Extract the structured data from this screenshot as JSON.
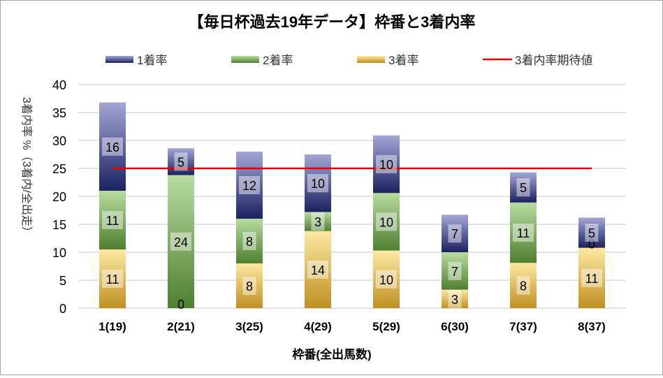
{
  "chart_data": {
    "type": "bar",
    "stacked": true,
    "title": "【毎日杯過去19年データ】枠番と3着内率",
    "xlabel": "枠番(全出馬数)",
    "ylabel": "3着内率 %（3着内/全出走）",
    "ylim": [
      0,
      40
    ],
    "yticks": [
      0,
      5,
      10,
      15,
      20,
      25,
      30,
      35,
      40
    ],
    "grid": true,
    "legend_position": "top",
    "categories": [
      "1(19)",
      "2(21)",
      "3(25)",
      "4(29)",
      "5(29)",
      "6(30)",
      "7(37)",
      "8(37)"
    ],
    "series": [
      {
        "name": "3着率",
        "values": [
          10.5,
          0,
          8.0,
          13.8,
          10.3,
          3.3,
          8.1,
          10.8
        ],
        "labels": [
          "11",
          "0",
          "8",
          "14",
          "10",
          "3",
          "8",
          "11"
        ],
        "color_light": "#fde9a3",
        "color_dark": "#bf9021"
      },
      {
        "name": "2着率",
        "values": [
          10.5,
          23.8,
          8.0,
          3.4,
          10.3,
          6.7,
          10.8,
          0
        ],
        "labels": [
          "11",
          "24",
          "8",
          "3",
          "10",
          "7",
          "11",
          "0"
        ],
        "color_light": "#b8dca0",
        "color_dark": "#4f7f30"
      },
      {
        "name": "1着率",
        "values": [
          15.8,
          4.8,
          12.0,
          10.3,
          10.3,
          6.7,
          5.4,
          5.4
        ],
        "labels": [
          "16",
          "5",
          "12",
          "10",
          "10",
          "7",
          "5",
          "5"
        ],
        "color_light": "#a3a7d6",
        "color_dark": "#1c2160"
      }
    ],
    "reference_line": {
      "name": "3着内率期待値",
      "value": 25,
      "color": "#e00000"
    }
  }
}
